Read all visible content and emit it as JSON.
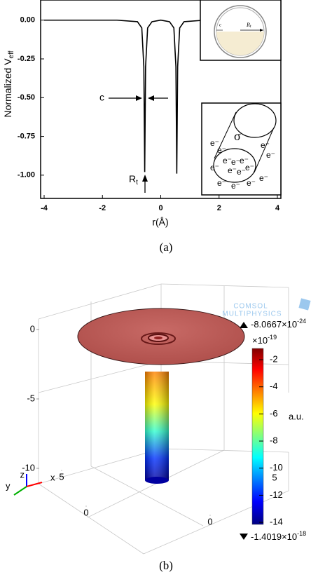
{
  "chart_data": [
    {
      "type": "line",
      "xlabel": "r(Å)",
      "ylabel": "Normalized V",
      "ylabel_sub": "eff",
      "x": [
        -4,
        -1.5,
        -0.8,
        -0.65,
        -0.58,
        -0.55,
        -0.52,
        -0.45,
        -0.3,
        0,
        0.3,
        0.45,
        0.52,
        0.55,
        0.58,
        0.65,
        0.8,
        1.5,
        4
      ],
      "series": [
        {
          "color": "#000000",
          "values": [
            0,
            0,
            -0.01,
            -0.05,
            -0.3,
            -0.98,
            -0.3,
            -0.05,
            -0.01,
            0,
            -0.01,
            -0.05,
            -0.3,
            -0.99,
            -0.3,
            -0.05,
            -0.01,
            0,
            0
          ]
        }
      ],
      "xlim": [
        -4.12,
        4.12
      ],
      "ylim": [
        -1.15,
        0.13
      ],
      "xticks": [
        -4,
        -2,
        0,
        2,
        4
      ],
      "yticks": [
        {
          "value": 0,
          "label": "0.00"
        },
        {
          "value": -0.25,
          "label": "-0.25"
        },
        {
          "value": -0.5,
          "label": "-0.50"
        },
        {
          "value": -0.75,
          "label": "-0.75"
        },
        {
          "value": -1,
          "label": "-1.00"
        }
      ],
      "annotations": {
        "c": "c",
        "r": "R",
        "r_sub": "t",
        "inset_c": "c",
        "inset_r": "R",
        "inset_r_sub": "t",
        "sigma": "σ"
      },
      "caption": "(a)"
    },
    {
      "type": "surface",
      "colorbar": {
        "label": "a.u.",
        "multiplier": "×10",
        "multiplier_exp": "-19",
        "ticks": [
          -2,
          -4,
          -6,
          -8,
          -10,
          -12,
          -14
        ],
        "lim": [
          -14.15,
          -1.17
        ],
        "max": "-8.0667×10",
        "max_exp": "-24",
        "min": "-1.4019×10",
        "min_exp": "-18"
      },
      "zticks": [
        0,
        -5,
        -10
      ],
      "yticks": [
        5,
        0
      ],
      "xticks": [
        0,
        5
      ],
      "axis_labels": {
        "x": "x",
        "y": "y",
        "z": "z"
      },
      "logo": [
        "COMSOL",
        "MULTIPHYSICS"
      ],
      "caption": "(b)"
    }
  ]
}
